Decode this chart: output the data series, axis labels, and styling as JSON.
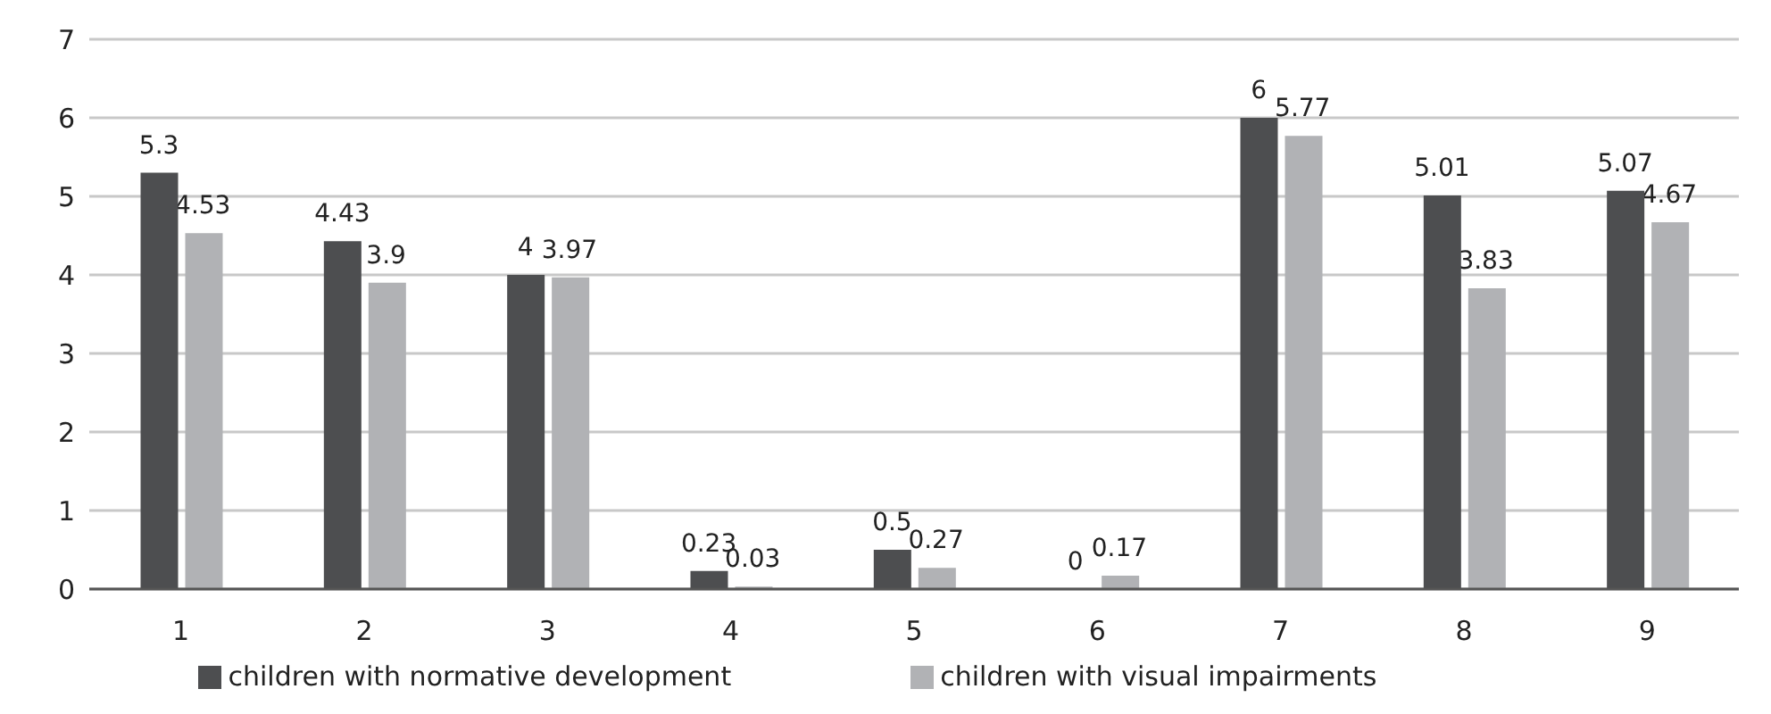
{
  "chart_data": {
    "type": "bar",
    "categories": [
      "1",
      "2",
      "3",
      "4",
      "5",
      "6",
      "7",
      "8",
      "9"
    ],
    "series": [
      {
        "name": "children with normative development",
        "color": "#4d4e50",
        "values": [
          5.3,
          4.43,
          4,
          0.23,
          0.5,
          0,
          6,
          5.01,
          5.07
        ]
      },
      {
        "name": "children with visual impairments",
        "color": "#b1b2b5",
        "values": [
          4.53,
          3.9,
          3.97,
          0.03,
          0.27,
          0.17,
          5.77,
          3.83,
          4.67
        ]
      }
    ],
    "ylim": [
      0,
      7
    ],
    "yticks": [
      0,
      1,
      2,
      3,
      4,
      5,
      6,
      7
    ],
    "grid": "y",
    "legend": "bottom",
    "data_labels": true
  }
}
